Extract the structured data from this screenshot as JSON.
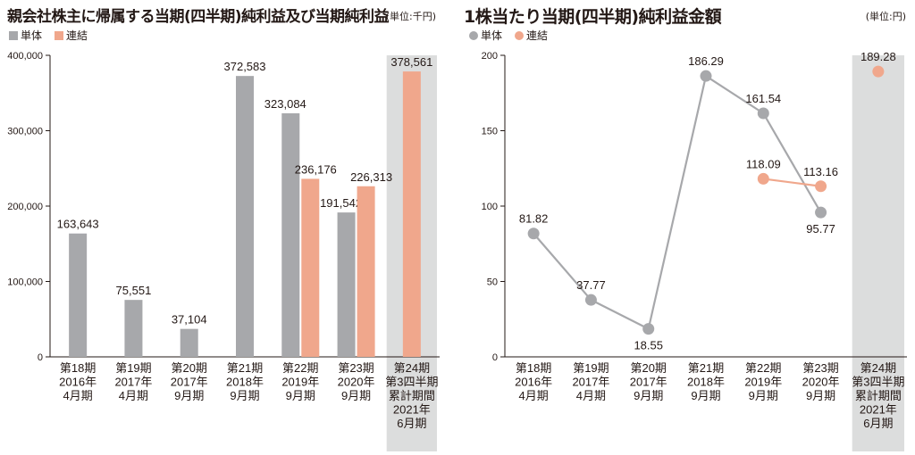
{
  "colors": {
    "single": "#a7a8ab",
    "consolidated": "#f0a78c",
    "highlight_bg": "#dcdddd",
    "axis": "#231815"
  },
  "left_chart": {
    "title": "親会社株主に帰属する当期(四半期)純利益及び当期純利益",
    "unit": "(単位:千円)",
    "legend": [
      {
        "label": "単体",
        "color": "#a7a8ab"
      },
      {
        "label": "連結",
        "color": "#f0a78c"
      }
    ]
  },
  "right_chart": {
    "title": "1株当たり当期(四半期)純利益金額",
    "unit": "(単位:円)",
    "legend": [
      {
        "label": "単体",
        "color": "#a7a8ab"
      },
      {
        "label": "連結",
        "color": "#f0a78c"
      }
    ]
  },
  "chart_data": [
    {
      "type": "bar",
      "title": "親会社株主に帰属する当期(四半期)純利益及び当期純利益",
      "unit": "(単位:千円)",
      "categories": [
        [
          "第18期",
          "2016年",
          "4月期"
        ],
        [
          "第19期",
          "2017年",
          "4月期"
        ],
        [
          "第20期",
          "2017年",
          "9月期"
        ],
        [
          "第21期",
          "2018年",
          "9月期"
        ],
        [
          "第22期",
          "2019年",
          "9月期"
        ],
        [
          "第23期",
          "2020年",
          "9月期"
        ],
        [
          "第24期",
          "第3四半期",
          "累計期間",
          "2021年",
          "6月期"
        ]
      ],
      "series": [
        {
          "name": "単体",
          "values": [
            163643,
            75551,
            37104,
            372583,
            323084,
            191542,
            null
          ]
        },
        {
          "name": "連結",
          "values": [
            null,
            null,
            null,
            null,
            236176,
            226313,
            378561
          ]
        }
      ],
      "value_labels": {
        "単体": [
          "163,643",
          "75,551",
          "37,104",
          "372,583",
          "323,084",
          "191,542",
          ""
        ],
        "連結": [
          "",
          "",
          "",
          "",
          "236,176",
          "226,313",
          "378,561"
        ]
      },
      "yticks": [
        "0",
        "100,000",
        "200,000",
        "300,000",
        "400,000"
      ],
      "ylim": [
        0,
        400000
      ],
      "highlighted_category_index": 6,
      "legend_position": "top-left"
    },
    {
      "type": "line",
      "title": "1株当たり当期(四半期)純利益金額",
      "unit": "(単位:円)",
      "categories": [
        [
          "第18期",
          "2016年",
          "4月期"
        ],
        [
          "第19期",
          "2017年",
          "4月期"
        ],
        [
          "第20期",
          "2017年",
          "9月期"
        ],
        [
          "第21期",
          "2018年",
          "9月期"
        ],
        [
          "第22期",
          "2019年",
          "9月期"
        ],
        [
          "第23期",
          "2020年",
          "9月期"
        ],
        [
          "第24期",
          "第3四半期",
          "累計期間",
          "2021年",
          "6月期"
        ]
      ],
      "series": [
        {
          "name": "単体",
          "values": [
            81.82,
            37.77,
            18.55,
            186.29,
            161.54,
            95.77,
            null
          ]
        },
        {
          "name": "連結",
          "values": [
            null,
            null,
            null,
            null,
            118.09,
            113.16,
            189.28
          ]
        }
      ],
      "value_labels": {
        "単体": [
          "81.82",
          "37.77",
          "18.55",
          "186.29",
          "161.54",
          "95.77",
          ""
        ],
        "連結": [
          "",
          "",
          "",
          "",
          "118.09",
          "113.16",
          "189.28"
        ]
      },
      "yticks": [
        "0",
        "50",
        "100",
        "150",
        "200"
      ],
      "ylim": [
        0,
        200
      ],
      "highlighted_category_index": 6,
      "legend_position": "top-left"
    }
  ]
}
